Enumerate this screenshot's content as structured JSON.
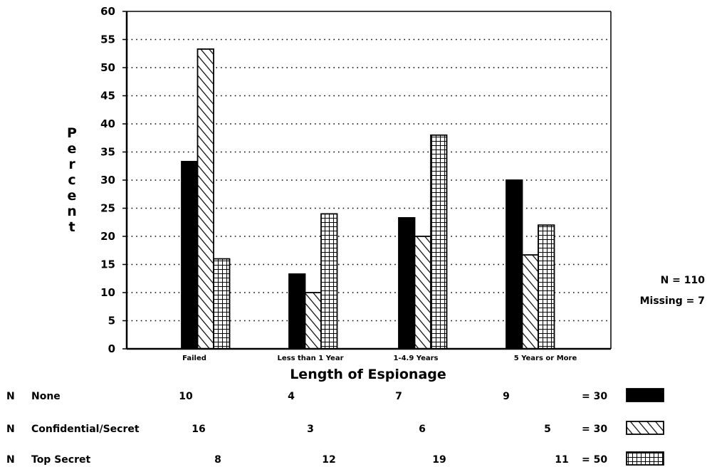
{
  "chart_data": {
    "type": "bar",
    "title": "",
    "xlabel": "Length of Espionage",
    "ylabel": "Percent",
    "ylim": [
      0,
      60
    ],
    "yticks": [
      0,
      5,
      10,
      15,
      20,
      25,
      30,
      35,
      40,
      45,
      50,
      55,
      60
    ],
    "grid": "dotted horizontal",
    "categories": [
      "Failed",
      "Less than 1 Year",
      "1-4.9 Years",
      "5 Years or More"
    ],
    "series": [
      {
        "name": "None",
        "values": [
          33.3,
          13.3,
          23.3,
          30.0
        ],
        "pattern": "solid",
        "color": "#000000"
      },
      {
        "name": "Confidential/Secret",
        "values": [
          53.3,
          10.0,
          20.0,
          16.7
        ],
        "pattern": "diagonal-hatch",
        "color": "#000000"
      },
      {
        "name": "Top Secret",
        "values": [
          16.0,
          24.0,
          38.0,
          22.0
        ],
        "pattern": "grid-hatch",
        "color": "#000000"
      }
    ],
    "annotations": {
      "n_total": "N = 110",
      "missing": "Missing = 7"
    },
    "count_table": {
      "prefix": "N",
      "rows": [
        {
          "label": "None",
          "counts": [
            "10",
            "4",
            "7",
            "9"
          ],
          "total": "= 30"
        },
        {
          "label": "Confidential/Secret",
          "counts": [
            "16",
            "3",
            "6",
            "5"
          ],
          "total": "= 30"
        },
        {
          "label": "Top Secret",
          "counts": [
            "8",
            "12",
            "19",
            "11"
          ],
          "total": "= 50"
        }
      ]
    }
  }
}
